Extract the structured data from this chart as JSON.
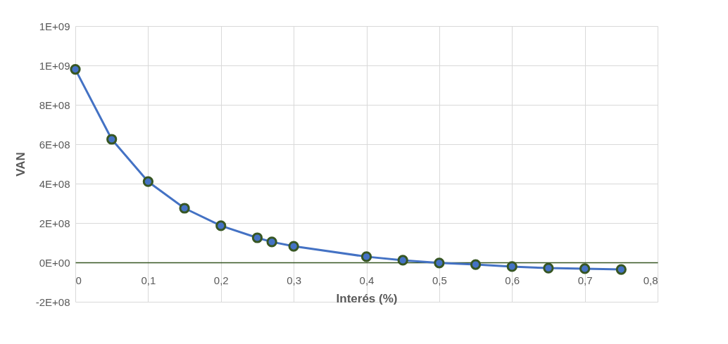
{
  "chart_data": {
    "type": "line",
    "xlabel": "Interés (%)",
    "ylabel": "VAN",
    "x": [
      0,
      0.05,
      0.1,
      0.15,
      0.2,
      0.25,
      0.27,
      0.3,
      0.4,
      0.45,
      0.5,
      0.55,
      0.6,
      0.65,
      0.7,
      0.75
    ],
    "series": [
      {
        "color": "#4472c4",
        "values": [
          980000000,
          625000000,
          410000000,
          275000000,
          186000000,
          125000000,
          104000000,
          82000000,
          29000000,
          11000000,
          -3000000,
          -11000000,
          -21000000,
          -29000000,
          -32000000,
          -36000000
        ]
      }
    ],
    "xlim": [
      0,
      0.8
    ],
    "xticks": [
      0,
      {
        "value": 0.1,
        "label": "0,1"
      },
      {
        "value": 0.2,
        "label": "0,2"
      },
      {
        "value": 0.3,
        "label": "0,3"
      },
      {
        "value": 0.4,
        "label": "0,4"
      },
      {
        "value": 0.5,
        "label": "0,5"
      },
      {
        "value": 0.6,
        "label": "0,6"
      },
      {
        "value": 0.7,
        "label": "0,7"
      },
      {
        "value": 0.8,
        "label": "0,8"
      }
    ],
    "ylim": [
      -200000000,
      1200000000
    ],
    "yticks": [
      {
        "value": -200000000,
        "label": "-2E+08"
      },
      {
        "value": 0,
        "label": "0E+00"
      },
      {
        "value": 200000000,
        "label": "2E+08"
      },
      {
        "value": 400000000,
        "label": "4E+08"
      },
      {
        "value": 600000000,
        "label": "6E+08"
      },
      {
        "value": 800000000,
        "label": "8E+08"
      },
      {
        "value": 1000000000,
        "label": "1E+09"
      },
      {
        "value": 1200000000,
        "label": "1E+09"
      }
    ],
    "grid": true,
    "marker": "circle",
    "line_style": "solid",
    "legend": false
  }
}
